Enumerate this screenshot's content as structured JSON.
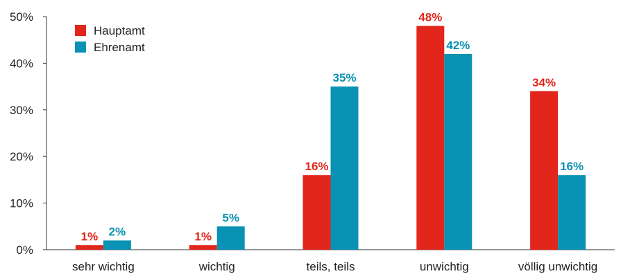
{
  "chart_data": {
    "type": "bar",
    "categories": [
      "sehr wichtig",
      "wichtig",
      "teils, teils",
      "unwichtig",
      "völlig unwichtig"
    ],
    "series": [
      {
        "name": "Hauptamt",
        "color": "#e3261b",
        "values": [
          1,
          1,
          16,
          48,
          34
        ],
        "labels": [
          "1%",
          "1%",
          "16%",
          "48%",
          "34%"
        ]
      },
      {
        "name": "Ehrenamt",
        "color": "#0a92b4",
        "values": [
          2,
          5,
          35,
          42,
          16
        ],
        "labels": [
          "2%",
          "5%",
          "35%",
          "42%",
          "16%"
        ]
      }
    ],
    "yticks": [
      0,
      10,
      20,
      30,
      40,
      50
    ],
    "ytick_labels": [
      "0%",
      "10%",
      "20%",
      "30%",
      "40%",
      "50%"
    ],
    "ylim": [
      0,
      50
    ],
    "legend": "top-left",
    "grid": false
  }
}
